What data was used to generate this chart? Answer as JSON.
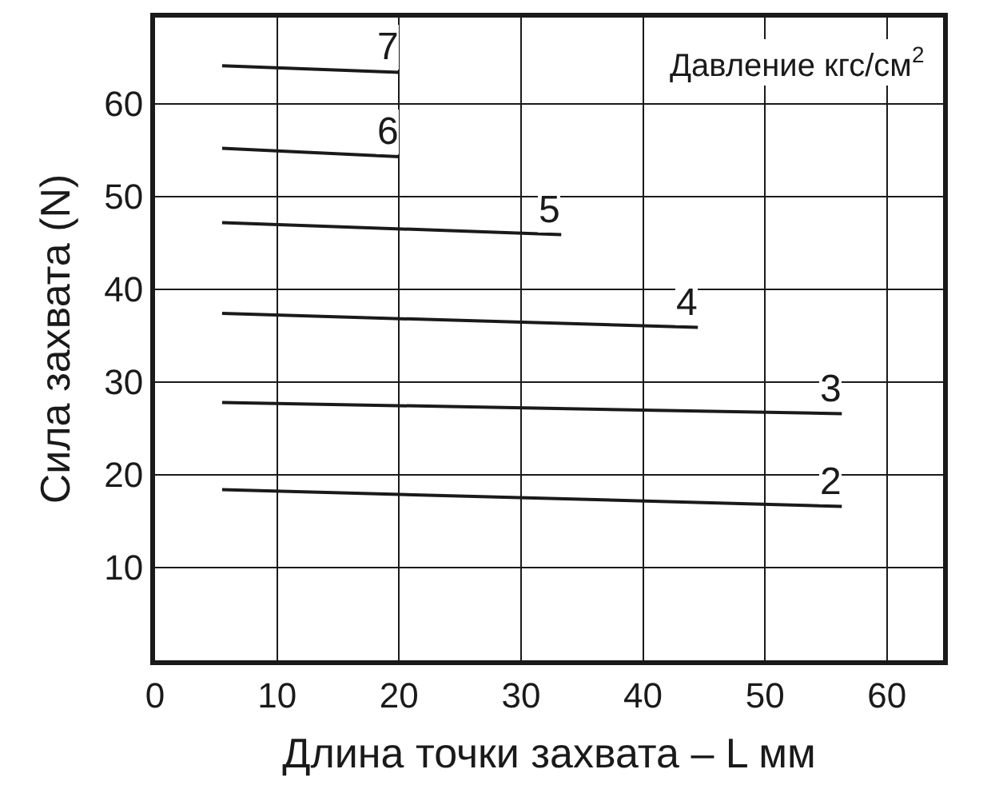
{
  "chart_data": {
    "type": "line",
    "xlabel": "Длина точки захвата – L мм",
    "ylabel": "Сила захвата (N)",
    "annotations": [
      "Давление кгс/см$^{2}$"
    ],
    "xlim": [
      0,
      64.6
    ],
    "xticks": [
      0,
      10,
      20,
      30,
      40,
      50,
      60
    ],
    "ylim": [
      0,
      69.3
    ],
    "yticks": [
      10,
      20,
      30,
      40,
      50,
      60
    ],
    "grid": true,
    "legend": false,
    "marker": "none",
    "line_style": "solid",
    "series": [
      {
        "name": "7",
        "color": "#1a1a1a",
        "x": [
          5.5,
          20
        ],
        "values": [
          64.1,
          63.4
        ]
      },
      {
        "name": "6",
        "color": "#1a1a1a",
        "x": [
          5.5,
          20
        ],
        "values": [
          55.2,
          54.3
        ]
      },
      {
        "name": "5",
        "color": "#1a1a1a",
        "x": [
          5.5,
          33.3
        ],
        "values": [
          47.2,
          45.9
        ]
      },
      {
        "name": "4",
        "color": "#1a1a1a",
        "x": [
          5.5,
          44.5
        ],
        "values": [
          37.4,
          35.9
        ]
      },
      {
        "name": "3",
        "color": "#1a1a1a",
        "x": [
          5.5,
          56.3
        ],
        "values": [
          27.8,
          26.6
        ]
      },
      {
        "name": "2",
        "color": "#1a1a1a",
        "x": [
          5.5,
          56.3
        ],
        "values": [
          18.4,
          16.6
        ]
      }
    ]
  }
}
